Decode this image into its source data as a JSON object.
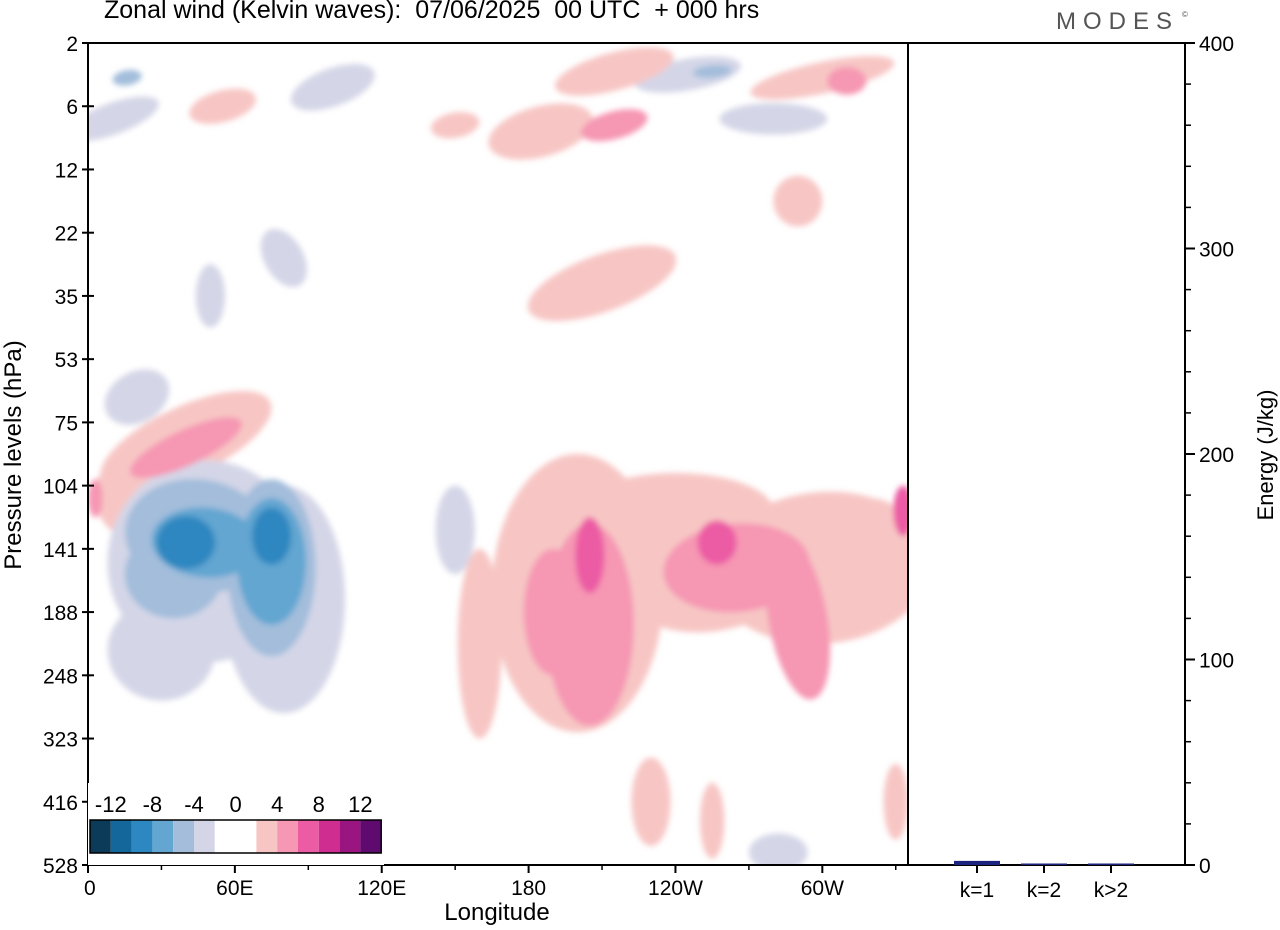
{
  "header": {
    "title": "Zonal wind (Kelvin waves):  07/06/2025  00 UTC  + 000 hrs",
    "brand": "MODES",
    "brand_mark": "©"
  },
  "axes": {
    "y_left_label": "Pressure levels (hPa)",
    "y_right_label": "Energy (J/kg)",
    "x_label": "Longitude"
  },
  "colors": {
    "neg_12": "#0b3b58",
    "neg_10": "#13679a",
    "neg_8": "#2d87c0",
    "neg_6": "#62a6d1",
    "neg_4": "#a3bddb",
    "neg_2": "#d4d6e7",
    "zero": "#ffffff",
    "pos_2": "#f7c6c4",
    "pos_4": "#f697b3",
    "pos_6": "#ec5ca4",
    "pos_8": "#cf2d90",
    "pos_10": "#9a157f",
    "pos_12": "#5e0a6e",
    "bar_fill": "#1a237e"
  },
  "chart_data": [
    {
      "type": "heatmap",
      "title": "Zonal wind (Kelvin waves):  07/06/2025  00 UTC  + 000 hrs",
      "xlabel": "Longitude",
      "ylabel": "Pressure levels (hPa)",
      "x_ticks": [
        "0",
        "60E",
        "120E",
        "180",
        "120W",
        "60W"
      ],
      "x_tick_degrees": [
        0,
        60,
        120,
        180,
        240,
        300
      ],
      "x_range": [
        0,
        335
      ],
      "y_ticks": [
        "2",
        "6",
        "12",
        "22",
        "35",
        "53",
        "75",
        "104",
        "141",
        "188",
        "248",
        "323",
        "416",
        "528"
      ],
      "y_scale": "categorical pressure levels (top to bottom)",
      "colorbar": {
        "labels": [
          "-12",
          "-8",
          "-4",
          "0",
          "4",
          "8",
          "12"
        ],
        "levels": [
          -12,
          -10,
          -8,
          -6,
          -4,
          -2,
          0,
          2,
          4,
          6,
          8,
          10,
          12
        ]
      },
      "features": [
        {
          "lon": 42,
          "level_index": 7.8,
          "value": -10
        },
        {
          "lon": 72,
          "level_index": 8.0,
          "value": -10
        },
        {
          "lon": 45,
          "level_index": 8.3,
          "value": -6
        },
        {
          "lon": 70,
          "level_index": 8.5,
          "value": -6
        },
        {
          "lon": 30,
          "level_index": 6.3,
          "value": 4
        },
        {
          "lon": 5,
          "level_index": 7.3,
          "value": 2
        },
        {
          "lon": 205,
          "level_index": 8.3,
          "value": 6
        },
        {
          "lon": 256,
          "level_index": 7.9,
          "value": 6
        },
        {
          "lon": 335,
          "level_index": 7.4,
          "value": 6
        },
        {
          "lon": 180,
          "level_index": 9.3,
          "value": 4
        },
        {
          "lon": 290,
          "level_index": 9.0,
          "value": 4
        },
        {
          "lon": 160,
          "level_index": 9.5,
          "value": 2
        },
        {
          "lon": 220,
          "level_index": 3.8,
          "value": 2
        },
        {
          "lon": 185,
          "level_index": 1.3,
          "value": 4
        },
        {
          "lon": 215,
          "level_index": 0.4,
          "value": 4
        },
        {
          "lon": 100,
          "level_index": 0.8,
          "value": -4
        },
        {
          "lon": 240,
          "level_index": 0.4,
          "value": -4
        },
        {
          "lon": 15,
          "level_index": 0.5,
          "value": -4
        },
        {
          "lon": 40,
          "level_index": 9.5,
          "value": -2
        },
        {
          "lon": 232,
          "level_index": 12.3,
          "value": 2
        },
        {
          "lon": 282,
          "level_index": 12.8,
          "value": -2
        }
      ]
    },
    {
      "type": "bar",
      "ylabel": "Energy (J/kg)",
      "categories": [
        "k=1",
        "k=2",
        "k>2"
      ],
      "values": [
        2,
        0.3,
        0.5
      ],
      "ylim": [
        0,
        400
      ],
      "y_ticks": [
        "0",
        "100",
        "200",
        "300",
        "400"
      ]
    }
  ]
}
